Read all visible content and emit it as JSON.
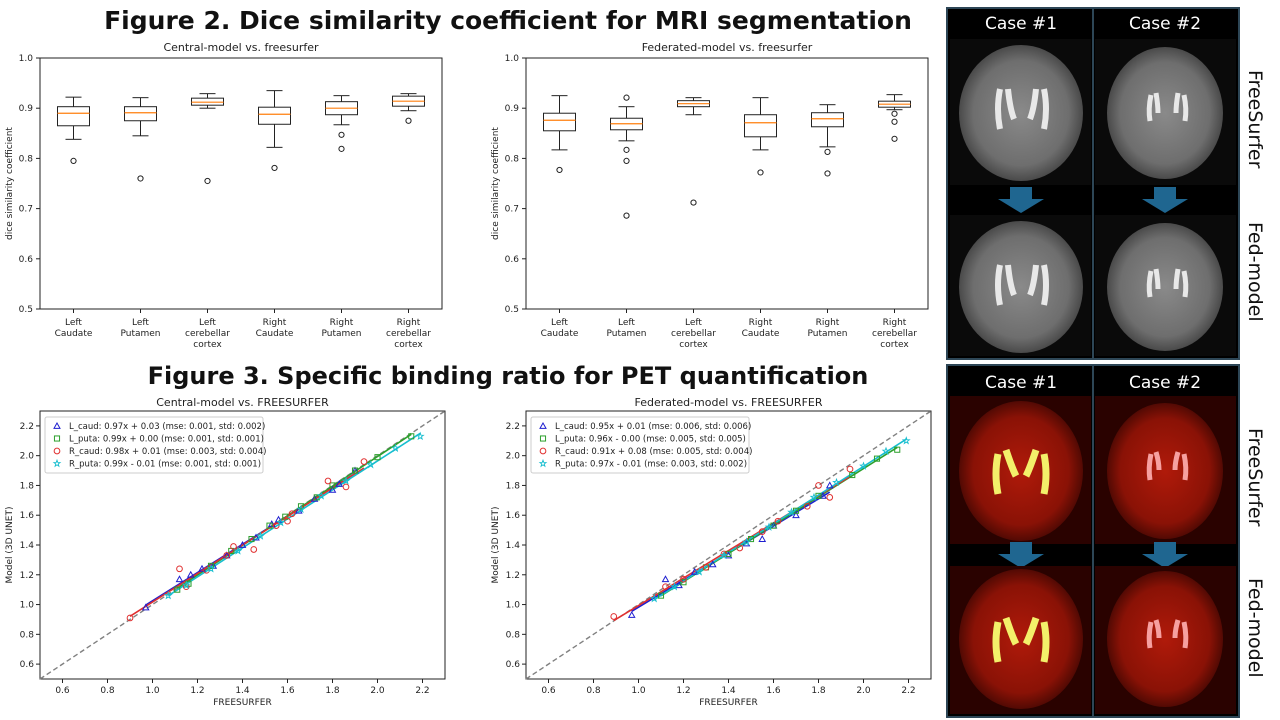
{
  "figure2": {
    "title": "Figure 2. Dice similarity coefficient for MRI segmentation",
    "panels": [
      {
        "title": "Central-model vs. freesurfer",
        "ylabel": "dice similarity coefficient",
        "ylim": [
          0.5,
          1.0
        ],
        "yticks": [
          "0.5",
          "0.6",
          "0.7",
          "0.8",
          "0.9",
          "1.0"
        ],
        "categories": [
          [
            "Left",
            "Caudate"
          ],
          [
            "Left",
            "Putamen"
          ],
          [
            "Left",
            "cerebellar",
            "cortex"
          ],
          [
            "Right",
            "Caudate"
          ],
          [
            "Right",
            "Putamen"
          ],
          [
            "Right",
            "cerebellar",
            "cortex"
          ]
        ],
        "boxes": [
          {
            "whislo": 0.838,
            "q1": 0.865,
            "med": 0.89,
            "q3": 0.903,
            "whishi": 0.922,
            "fliers": [
              0.795
            ]
          },
          {
            "whislo": 0.845,
            "q1": 0.875,
            "med": 0.891,
            "q3": 0.903,
            "whishi": 0.921,
            "fliers": [
              0.76
            ]
          },
          {
            "whislo": 0.9,
            "q1": 0.906,
            "med": 0.912,
            "q3": 0.92,
            "whishi": 0.929,
            "fliers": [
              0.755
            ]
          },
          {
            "whislo": 0.822,
            "q1": 0.868,
            "med": 0.888,
            "q3": 0.902,
            "whishi": 0.935,
            "fliers": [
              0.781
            ]
          },
          {
            "whislo": 0.867,
            "q1": 0.887,
            "med": 0.9,
            "q3": 0.913,
            "whishi": 0.925,
            "fliers": [
              0.847,
              0.819
            ]
          },
          {
            "whislo": 0.895,
            "q1": 0.904,
            "med": 0.914,
            "q3": 0.924,
            "whishi": 0.929,
            "fliers": [
              0.875
            ]
          }
        ]
      },
      {
        "title": "Federated-model vs. freesurfer",
        "ylabel": "dice similarity coefficient",
        "ylim": [
          0.5,
          1.0
        ],
        "yticks": [
          "0.5",
          "0.6",
          "0.7",
          "0.8",
          "0.9",
          "1.0"
        ],
        "categories": [
          [
            "Left",
            "Caudate"
          ],
          [
            "Left",
            "Putamen"
          ],
          [
            "Left",
            "cerebellar",
            "cortex"
          ],
          [
            "Right",
            "Caudate"
          ],
          [
            "Right",
            "Putamen"
          ],
          [
            "Right",
            "cerebellar",
            "cortex"
          ]
        ],
        "boxes": [
          {
            "whislo": 0.817,
            "q1": 0.855,
            "med": 0.876,
            "q3": 0.89,
            "whishi": 0.925,
            "fliers": [
              0.777
            ]
          },
          {
            "whislo": 0.835,
            "q1": 0.857,
            "med": 0.869,
            "q3": 0.88,
            "whishi": 0.903,
            "fliers": [
              0.921,
              0.817,
              0.795,
              0.686
            ]
          },
          {
            "whislo": 0.887,
            "q1": 0.903,
            "med": 0.909,
            "q3": 0.915,
            "whishi": 0.921,
            "fliers": [
              0.712
            ]
          },
          {
            "whislo": 0.817,
            "q1": 0.843,
            "med": 0.871,
            "q3": 0.887,
            "whishi": 0.921,
            "fliers": [
              0.772
            ]
          },
          {
            "whislo": 0.823,
            "q1": 0.863,
            "med": 0.879,
            "q3": 0.891,
            "whishi": 0.907,
            "fliers": [
              0.813,
              0.77
            ]
          },
          {
            "whislo": 0.897,
            "q1": 0.902,
            "med": 0.908,
            "q3": 0.914,
            "whishi": 0.927,
            "fliers": [
              0.889,
              0.873,
              0.839
            ]
          }
        ]
      }
    ]
  },
  "figure3": {
    "title": "Figure 3. Specific binding ratio for PET quantification",
    "panels": [
      {
        "title": "Central-model vs. FREESURFER",
        "xlabel": "FREESURFER",
        "ylabel": "Model (3D UNET)",
        "xlim": [
          0.5,
          2.3
        ],
        "ylim": [
          0.5,
          2.3
        ],
        "xticks": [
          0.6,
          0.8,
          1.0,
          1.2,
          1.4,
          1.6,
          1.8,
          2.0,
          2.2
        ],
        "yticks": [
          0.6,
          0.8,
          1.0,
          1.2,
          1.4,
          1.6,
          1.8,
          2.0,
          2.2
        ],
        "series": [
          {
            "name": "L_caud: 0.97x + 0.03 (mse: 0.001, std: 0.002)",
            "marker": "triangle",
            "color": "#1f1fd0",
            "points": [
              [
                0.97,
                0.98
              ],
              [
                1.12,
                1.17
              ],
              [
                1.17,
                1.2
              ],
              [
                1.22,
                1.24
              ],
              [
                1.27,
                1.26
              ],
              [
                1.33,
                1.33
              ],
              [
                1.4,
                1.4
              ],
              [
                1.46,
                1.45
              ],
              [
                1.53,
                1.54
              ],
              [
                1.56,
                1.57
              ],
              [
                1.65,
                1.63
              ],
              [
                1.72,
                1.71
              ],
              [
                1.8,
                1.77
              ],
              [
                1.83,
                1.81
              ],
              [
                1.9,
                1.9
              ]
            ]
          },
          {
            "name": "L_puta: 0.99x + 0.00 (mse: 0.001, std: 0.001)",
            "marker": "square",
            "color": "#2ca02c",
            "points": [
              [
                1.11,
                1.1
              ],
              [
                1.16,
                1.14
              ],
              [
                1.26,
                1.26
              ],
              [
                1.35,
                1.36
              ],
              [
                1.44,
                1.44
              ],
              [
                1.52,
                1.53
              ],
              [
                1.59,
                1.59
              ],
              [
                1.66,
                1.66
              ],
              [
                1.73,
                1.72
              ],
              [
                1.8,
                1.8
              ],
              [
                1.9,
                1.9
              ],
              [
                2.0,
                1.99
              ],
              [
                2.15,
                2.13
              ]
            ]
          },
          {
            "name": "R_caud: 0.98x + 0.01 (mse: 0.003, std: 0.004)",
            "marker": "circle",
            "color": "#e03030",
            "points": [
              [
                0.9,
                0.91
              ],
              [
                1.12,
                1.24
              ],
              [
                1.15,
                1.12
              ],
              [
                1.24,
                1.23
              ],
              [
                1.33,
                1.33
              ],
              [
                1.36,
                1.39
              ],
              [
                1.45,
                1.37
              ],
              [
                1.55,
                1.53
              ],
              [
                1.6,
                1.56
              ],
              [
                1.62,
                1.61
              ],
              [
                1.78,
                1.83
              ],
              [
                1.86,
                1.79
              ],
              [
                1.94,
                1.96
              ]
            ]
          },
          {
            "name": "R_puta: 0.99x - 0.01 (mse: 0.001, std: 0.001)",
            "marker": "star",
            "color": "#17becf",
            "points": [
              [
                1.07,
                1.06
              ],
              [
                1.15,
                1.13
              ],
              [
                1.26,
                1.24
              ],
              [
                1.38,
                1.36
              ],
              [
                1.48,
                1.46
              ],
              [
                1.57,
                1.55
              ],
              [
                1.66,
                1.64
              ],
              [
                1.75,
                1.73
              ],
              [
                1.86,
                1.83
              ],
              [
                1.97,
                1.94
              ],
              [
                2.08,
                2.05
              ],
              [
                2.19,
                2.13
              ]
            ]
          }
        ]
      },
      {
        "title": "Federated-model vs. FREESURFER",
        "xlabel": "FREESURFER",
        "ylabel": "Model (3D UNET)",
        "xlim": [
          0.5,
          2.3
        ],
        "ylim": [
          0.5,
          2.3
        ],
        "xticks": [
          0.6,
          0.8,
          1.0,
          1.2,
          1.4,
          1.6,
          1.8,
          2.0,
          2.2
        ],
        "yticks": [
          0.6,
          0.8,
          1.0,
          1.2,
          1.4,
          1.6,
          1.8,
          2.0,
          2.2
        ],
        "series": [
          {
            "name": "L_caud: 0.95x + 0.01 (mse: 0.006, std: 0.006)",
            "marker": "triangle",
            "color": "#1f1fd0",
            "points": [
              [
                0.97,
                0.93
              ],
              [
                1.12,
                1.17
              ],
              [
                1.18,
                1.13
              ],
              [
                1.25,
                1.22
              ],
              [
                1.33,
                1.27
              ],
              [
                1.4,
                1.33
              ],
              [
                1.48,
                1.41
              ],
              [
                1.55,
                1.44
              ],
              [
                1.6,
                1.53
              ],
              [
                1.7,
                1.6
              ],
              [
                1.82,
                1.73
              ],
              [
                1.85,
                1.8
              ]
            ]
          },
          {
            "name": "L_puta: 0.96x - 0.00 (mse: 0.005, std: 0.005)",
            "marker": "square",
            "color": "#2ca02c",
            "points": [
              [
                1.1,
                1.06
              ],
              [
                1.2,
                1.15
              ],
              [
                1.3,
                1.25
              ],
              [
                1.4,
                1.34
              ],
              [
                1.5,
                1.44
              ],
              [
                1.6,
                1.53
              ],
              [
                1.7,
                1.63
              ],
              [
                1.8,
                1.73
              ],
              [
                1.95,
                1.87
              ],
              [
                2.06,
                1.98
              ],
              [
                2.15,
                2.04
              ]
            ]
          },
          {
            "name": "R_caud: 0.91x + 0.08 (mse: 0.005, std: 0.004)",
            "marker": "circle",
            "color": "#e03030",
            "points": [
              [
                0.89,
                0.92
              ],
              [
                1.12,
                1.12
              ],
              [
                1.2,
                1.17
              ],
              [
                1.3,
                1.25
              ],
              [
                1.38,
                1.34
              ],
              [
                1.45,
                1.38
              ],
              [
                1.55,
                1.49
              ],
              [
                1.62,
                1.56
              ],
              [
                1.75,
                1.66
              ],
              [
                1.8,
                1.8
              ],
              [
                1.85,
                1.72
              ],
              [
                1.94,
                1.91
              ]
            ]
          },
          {
            "name": "R_puta: 0.97x - 0.01 (mse: 0.003, std: 0.002)",
            "marker": "star",
            "color": "#17becf",
            "points": [
              [
                1.07,
                1.04
              ],
              [
                1.16,
                1.12
              ],
              [
                1.27,
                1.22
              ],
              [
                1.38,
                1.33
              ],
              [
                1.48,
                1.42
              ],
              [
                1.58,
                1.52
              ],
              [
                1.68,
                1.62
              ],
              [
                1.78,
                1.72
              ],
              [
                1.88,
                1.82
              ],
              [
                2.0,
                1.93
              ],
              [
                2.1,
                2.03
              ],
              [
                2.19,
                2.1
              ]
            ]
          }
        ]
      }
    ]
  },
  "mri_images": {
    "case_labels": [
      "Case #1",
      "Case #2"
    ],
    "row_labels": [
      "FreeSurfer",
      "Fed-model"
    ],
    "arrow_color": "#1f6690"
  },
  "pet_images": {
    "case_labels": [
      "Case #1",
      "Case #2"
    ],
    "row_labels": [
      "FreeSurfer",
      "Fed-model"
    ],
    "arrow_color": "#1f6690"
  }
}
